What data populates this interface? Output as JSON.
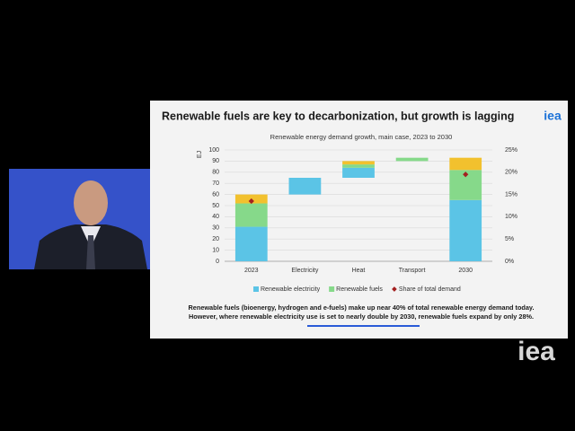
{
  "slide": {
    "title": "Renewable fuels are key to decarbonization, but growth is lagging",
    "logo": "iea",
    "caption": [
      "Renewable fuels (bioenergy, hydrogen and e-fuels) make up near 40% of total renewable energy demand today.",
      "However, where renewable electricity use is set to nearly double by 2030, renewable fuels expand by only 28%."
    ]
  },
  "watermark": "iea",
  "chart_data": {
    "type": "waterfall",
    "title": "Renewable energy demand growth, main case, 2023 to 2030",
    "ylabel": "EJ",
    "categories": [
      "2023",
      "Electricity",
      "Heat",
      "Transport",
      "2030"
    ],
    "series": [
      {
        "name": "Renewable electricity",
        "color": "#5bc4e6",
        "values": [
          31,
          15,
          9,
          null,
          55
        ]
      },
      {
        "name": "Renewable fuels",
        "color": "#86d98a",
        "values": [
          21,
          null,
          3,
          3,
          27
        ]
      },
      {
        "color": "#f2c12e",
        "values": [
          8,
          null,
          3,
          null,
          11
        ]
      },
      {
        "name": "Share of total demand",
        "color": "#a32020",
        "axis": "y2",
        "values": [
          13.5,
          null,
          null,
          null,
          19.5
        ]
      }
    ],
    "ylim": [
      0,
      100
    ],
    "yticks": [
      0,
      10,
      20,
      30,
      40,
      50,
      60,
      70,
      80,
      90,
      100
    ],
    "y2lim": [
      0,
      25
    ],
    "y2ticks": [
      {
        "value": 0,
        "label": "0%"
      },
      {
        "value": 5,
        "label": "5%"
      },
      {
        "value": 10,
        "label": "10%"
      },
      {
        "value": 15,
        "label": "15%"
      },
      {
        "value": 20,
        "label": "20%"
      },
      {
        "value": 25,
        "label": "25%"
      }
    ],
    "grid": true
  }
}
